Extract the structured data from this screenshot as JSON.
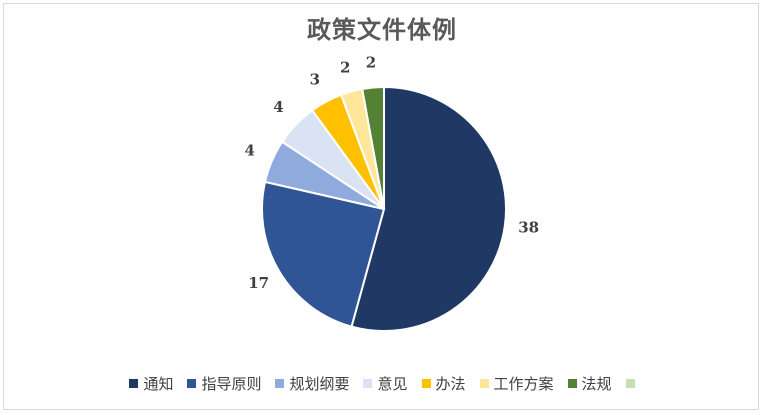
{
  "chart_data": {
    "type": "pie",
    "title": "政策文件体例",
    "categories": [
      "通知",
      "指导原则",
      "规划纲要",
      "意见",
      "办法",
      "工作方案",
      "法规"
    ],
    "values": [
      38,
      17,
      4,
      4,
      3,
      2,
      2
    ],
    "colors": [
      "#1f3864",
      "#2f5597",
      "#8faadc",
      "#dae3f3",
      "#ffc000",
      "#ffe699",
      "#548235"
    ],
    "legend_extra_colors": [
      "#c5e0b4"
    ],
    "legend_position": "bottom",
    "start_angle_deg": 0,
    "direction": "clockwise"
  }
}
